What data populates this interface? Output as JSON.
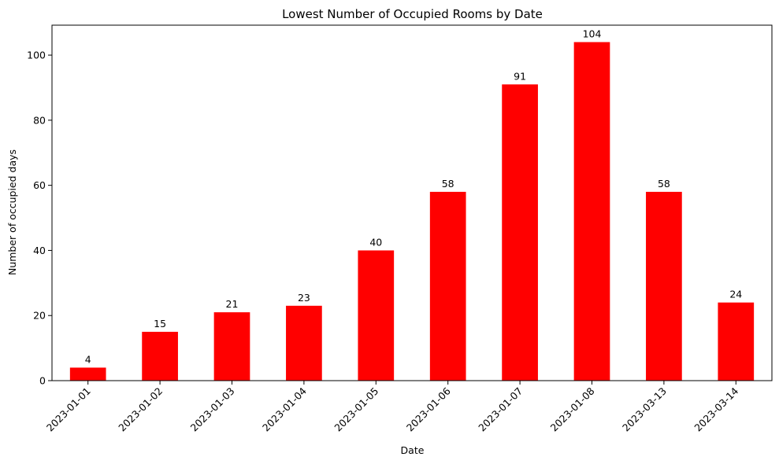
{
  "chart_data": {
    "type": "bar",
    "title": "Lowest Number of Occupied Rooms by Date",
    "xlabel": "Date",
    "ylabel": "Number of occupied days",
    "categories": [
      "2023-01-01",
      "2023-01-02",
      "2023-01-03",
      "2023-01-04",
      "2023-01-05",
      "2023-01-06",
      "2023-01-07",
      "2023-01-08",
      "2023-03-13",
      "2023-03-14"
    ],
    "values": [
      4,
      15,
      21,
      23,
      40,
      58,
      91,
      104,
      58,
      24
    ],
    "ylim": [
      0,
      109.2
    ],
    "yticks": [
      0,
      20,
      40,
      60,
      80,
      100
    ],
    "bar_color": "#ff0000",
    "grid": false,
    "legend": "none",
    "x_tick_rotation": 45
  }
}
